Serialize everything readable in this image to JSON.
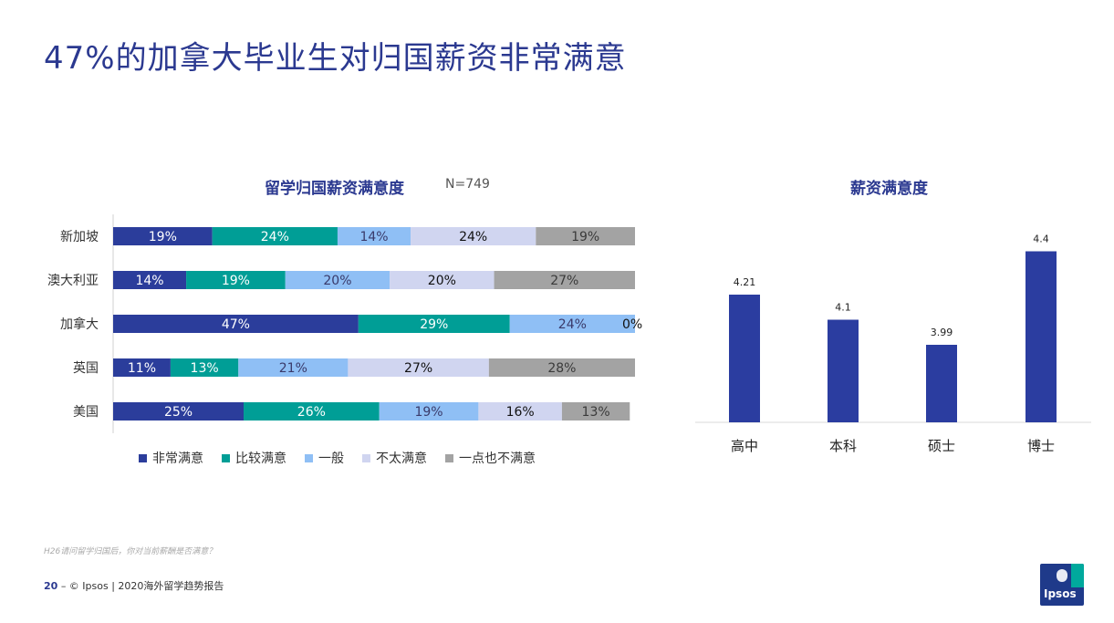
{
  "page": {
    "title": "47%的加拿大毕业生对归国薪资非常满意",
    "note": "H26请问留学归国后，你对当前薪酬是否满意？",
    "footer_page": "20",
    "footer_text": "– © Ipsos | 2020海外留学趋势报告",
    "logo_text": "Ipsos"
  },
  "chart_data": [
    {
      "type": "bar",
      "orientation": "horizontal-stacked-100",
      "title": "留学归国薪资满意度",
      "subtitle": "N=749",
      "categories": [
        "新加坡",
        "澳大利亚",
        "加拿大",
        "英国",
        "美国"
      ],
      "series": [
        {
          "name": "非常满意",
          "color": "#2b3d9b",
          "label_color": "#ffffff",
          "values": [
            19,
            14,
            47,
            11,
            25
          ]
        },
        {
          "name": "比较满意",
          "color": "#009e96",
          "label_color": "#ffffff",
          "values": [
            24,
            19,
            29,
            13,
            26
          ]
        },
        {
          "name": "一般",
          "color": "#8fbff5",
          "label_color": "#3a3a6a",
          "values": [
            14,
            20,
            24,
            21,
            19
          ]
        },
        {
          "name": "不太满意",
          "color": "#d0d5f0",
          "label_color": "#111111",
          "values": [
            24,
            20,
            0,
            27,
            16
          ]
        },
        {
          "name": "一点也不满意",
          "color": "#a3a3a3",
          "label_color": "#3a3a3a",
          "values": [
            19,
            27,
            0,
            28,
            13
          ]
        }
      ],
      "data_labels": [
        [
          "19%",
          "24%",
          "14%",
          "24%",
          "19%"
        ],
        [
          "14%",
          "19%",
          "20%",
          "20%",
          "27%"
        ],
        [
          "47%",
          "29%",
          "24%",
          "0%",
          ""
        ],
        [
          "11%",
          "13%",
          "21%",
          "27%",
          "28%"
        ],
        [
          "25%",
          "26%",
          "19%",
          "16%",
          "13%"
        ]
      ],
      "legend_position": "bottom"
    },
    {
      "type": "bar",
      "title": "薪资满意度",
      "categories": [
        "高中",
        "本科",
        "硕士",
        "博士"
      ],
      "values": [
        4.21,
        4.1,
        3.99,
        4.4
      ],
      "value_labels": [
        "4.21",
        "4.1",
        "3.99",
        "4.4"
      ],
      "color": "#2b3da0",
      "ylim": [
        3.65,
        4.45
      ]
    }
  ]
}
